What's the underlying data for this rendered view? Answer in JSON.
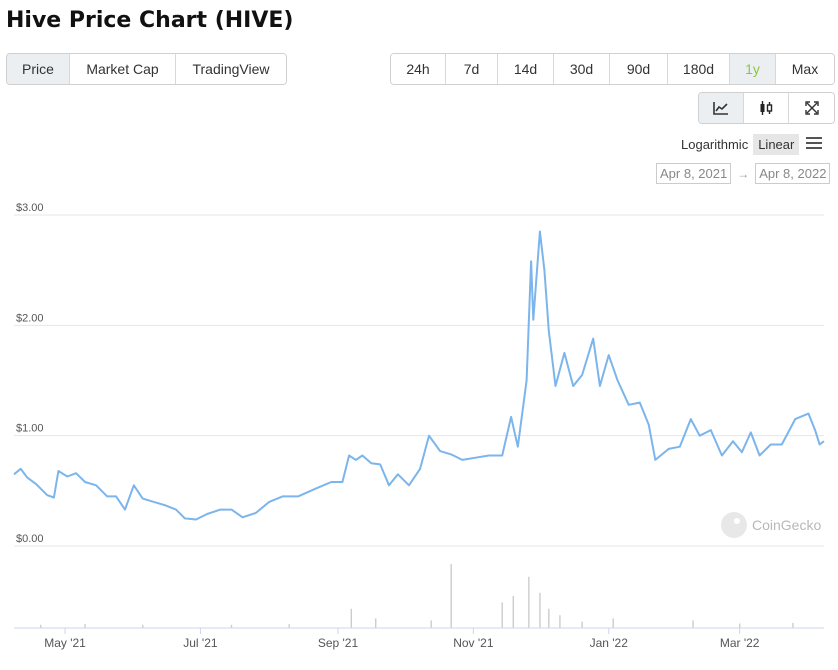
{
  "title": "Hive Price Chart (HIVE)",
  "view_tabs": [
    {
      "label": "Price",
      "active": true
    },
    {
      "label": "Market Cap",
      "active": false
    },
    {
      "label": "TradingView",
      "active": false
    }
  ],
  "range_tabs": [
    {
      "label": "24h",
      "active": false
    },
    {
      "label": "7d",
      "active": false
    },
    {
      "label": "14d",
      "active": false
    },
    {
      "label": "30d",
      "active": false
    },
    {
      "label": "90d",
      "active": false
    },
    {
      "label": "180d",
      "active": false
    },
    {
      "label": "1y",
      "active": true
    },
    {
      "label": "Max",
      "active": false
    }
  ],
  "chart_tools": [
    "line-chart-icon",
    "candlestick-icon",
    "fullscreen-icon"
  ],
  "scale": {
    "log_label": "Logarithmic",
    "linear_label": "Linear",
    "selected": "Linear"
  },
  "date_range": {
    "from": "Apr 8, 2021",
    "arrow": "→",
    "to": "Apr 8, 2022"
  },
  "watermark": "CoinGecko",
  "colors": {
    "line": "#7cb5ec",
    "accent": "#8dc63f",
    "grid": "#e6e6e6",
    "volume": "#cccccc"
  },
  "chart_data": {
    "type": "line",
    "title": "",
    "xlabel": "",
    "ylabel": "",
    "ylim": [
      0,
      3
    ],
    "xlim": [
      "2021-04-08",
      "2022-04-08"
    ],
    "grid": true,
    "y_ticks": [
      {
        "value": 0,
        "label": "$0.00"
      },
      {
        "value": 1,
        "label": "$1.00"
      },
      {
        "value": 2,
        "label": "$2.00"
      },
      {
        "value": 3,
        "label": "$3.00"
      }
    ],
    "x_ticks": [
      {
        "date": "2021-05-01",
        "label": "May '21"
      },
      {
        "date": "2021-07-01",
        "label": "Jul '21"
      },
      {
        "date": "2021-09-01",
        "label": "Sep '21"
      },
      {
        "date": "2021-11-01",
        "label": "Nov '21"
      },
      {
        "date": "2022-01-01",
        "label": "Jan '22"
      },
      {
        "date": "2022-03-01",
        "label": "Mar '22"
      }
    ],
    "series": [
      {
        "values": [
          {
            "x": "2021-04-08",
            "y": 0.65
          },
          {
            "x": "2021-04-11",
            "y": 0.7
          },
          {
            "x": "2021-04-14",
            "y": 0.62
          },
          {
            "x": "2021-04-18",
            "y": 0.56
          },
          {
            "x": "2021-04-23",
            "y": 0.46
          },
          {
            "x": "2021-04-26",
            "y": 0.44
          },
          {
            "x": "2021-04-28",
            "y": 0.68
          },
          {
            "x": "2021-05-02",
            "y": 0.63
          },
          {
            "x": "2021-05-06",
            "y": 0.66
          },
          {
            "x": "2021-05-10",
            "y": 0.58
          },
          {
            "x": "2021-05-15",
            "y": 0.55
          },
          {
            "x": "2021-05-20",
            "y": 0.45
          },
          {
            "x": "2021-05-24",
            "y": 0.45
          },
          {
            "x": "2021-05-28",
            "y": 0.33
          },
          {
            "x": "2021-06-01",
            "y": 0.55
          },
          {
            "x": "2021-06-05",
            "y": 0.43
          },
          {
            "x": "2021-06-10",
            "y": 0.4
          },
          {
            "x": "2021-06-15",
            "y": 0.37
          },
          {
            "x": "2021-06-20",
            "y": 0.33
          },
          {
            "x": "2021-06-24",
            "y": 0.25
          },
          {
            "x": "2021-06-29",
            "y": 0.24
          },
          {
            "x": "2021-07-04",
            "y": 0.29
          },
          {
            "x": "2021-07-10",
            "y": 0.33
          },
          {
            "x": "2021-07-15",
            "y": 0.33
          },
          {
            "x": "2021-07-20",
            "y": 0.26
          },
          {
            "x": "2021-07-26",
            "y": 0.3
          },
          {
            "x": "2021-08-01",
            "y": 0.4
          },
          {
            "x": "2021-08-07",
            "y": 0.45
          },
          {
            "x": "2021-08-14",
            "y": 0.45
          },
          {
            "x": "2021-08-22",
            "y": 0.52
          },
          {
            "x": "2021-08-29",
            "y": 0.58
          },
          {
            "x": "2021-09-03",
            "y": 0.58
          },
          {
            "x": "2021-09-06",
            "y": 0.82
          },
          {
            "x": "2021-09-09",
            "y": 0.78
          },
          {
            "x": "2021-09-12",
            "y": 0.82
          },
          {
            "x": "2021-09-16",
            "y": 0.75
          },
          {
            "x": "2021-09-20",
            "y": 0.74
          },
          {
            "x": "2021-09-24",
            "y": 0.55
          },
          {
            "x": "2021-09-28",
            "y": 0.65
          },
          {
            "x": "2021-10-03",
            "y": 0.55
          },
          {
            "x": "2021-10-08",
            "y": 0.7
          },
          {
            "x": "2021-10-12",
            "y": 1.0
          },
          {
            "x": "2021-10-17",
            "y": 0.86
          },
          {
            "x": "2021-10-22",
            "y": 0.83
          },
          {
            "x": "2021-10-27",
            "y": 0.78
          },
          {
            "x": "2021-11-02",
            "y": 0.8
          },
          {
            "x": "2021-11-08",
            "y": 0.82
          },
          {
            "x": "2021-11-14",
            "y": 0.82
          },
          {
            "x": "2021-11-18",
            "y": 1.17
          },
          {
            "x": "2021-11-21",
            "y": 0.9
          },
          {
            "x": "2021-11-25",
            "y": 1.5
          },
          {
            "x": "2021-11-27",
            "y": 2.58
          },
          {
            "x": "2021-11-28",
            "y": 2.05
          },
          {
            "x": "2021-12-01",
            "y": 2.85
          },
          {
            "x": "2021-12-03",
            "y": 2.5
          },
          {
            "x": "2021-12-05",
            "y": 1.95
          },
          {
            "x": "2021-12-08",
            "y": 1.45
          },
          {
            "x": "2021-12-12",
            "y": 1.75
          },
          {
            "x": "2021-12-16",
            "y": 1.45
          },
          {
            "x": "2021-12-20",
            "y": 1.55
          },
          {
            "x": "2021-12-25",
            "y": 1.88
          },
          {
            "x": "2021-12-28",
            "y": 1.45
          },
          {
            "x": "2022-01-01",
            "y": 1.73
          },
          {
            "x": "2022-01-05",
            "y": 1.5
          },
          {
            "x": "2022-01-10",
            "y": 1.28
          },
          {
            "x": "2022-01-15",
            "y": 1.3
          },
          {
            "x": "2022-01-19",
            "y": 1.1
          },
          {
            "x": "2022-01-22",
            "y": 0.78
          },
          {
            "x": "2022-01-28",
            "y": 0.88
          },
          {
            "x": "2022-02-02",
            "y": 0.9
          },
          {
            "x": "2022-02-07",
            "y": 1.15
          },
          {
            "x": "2022-02-11",
            "y": 1.0
          },
          {
            "x": "2022-02-16",
            "y": 1.05
          },
          {
            "x": "2022-02-21",
            "y": 0.82
          },
          {
            "x": "2022-02-26",
            "y": 0.95
          },
          {
            "x": "2022-03-02",
            "y": 0.85
          },
          {
            "x": "2022-03-06",
            "y": 1.03
          },
          {
            "x": "2022-03-10",
            "y": 0.82
          },
          {
            "x": "2022-03-15",
            "y": 0.92
          },
          {
            "x": "2022-03-20",
            "y": 0.92
          },
          {
            "x": "2022-03-26",
            "y": 1.15
          },
          {
            "x": "2022-04-01",
            "y": 1.2
          },
          {
            "x": "2022-04-04",
            "y": 1.05
          },
          {
            "x": "2022-04-06",
            "y": 0.92
          },
          {
            "x": "2022-04-08",
            "y": 0.95
          }
        ]
      }
    ],
    "volume": {
      "ylim": [
        0,
        1
      ],
      "values": [
        {
          "x": "2021-10-22",
          "y": 1.0
        },
        {
          "x": "2021-11-26",
          "y": 0.8
        },
        {
          "x": "2021-11-14",
          "y": 0.4
        },
        {
          "x": "2021-12-01",
          "y": 0.55
        },
        {
          "x": "2021-09-07",
          "y": 0.3
        },
        {
          "x": "2021-11-19",
          "y": 0.5
        },
        {
          "x": "2021-12-05",
          "y": 0.3
        },
        {
          "x": "2021-12-10",
          "y": 0.2
        },
        {
          "x": "2021-09-18",
          "y": 0.15
        },
        {
          "x": "2021-10-13",
          "y": 0.12
        },
        {
          "x": "2022-01-03",
          "y": 0.15
        },
        {
          "x": "2022-02-08",
          "y": 0.12
        },
        {
          "x": "2021-05-10",
          "y": 0.06
        },
        {
          "x": "2021-06-05",
          "y": 0.05
        },
        {
          "x": "2021-07-15",
          "y": 0.05
        },
        {
          "x": "2021-08-10",
          "y": 0.06
        },
        {
          "x": "2022-03-01",
          "y": 0.07
        },
        {
          "x": "2022-03-25",
          "y": 0.08
        },
        {
          "x": "2021-04-20",
          "y": 0.05
        },
        {
          "x": "2021-12-20",
          "y": 0.1
        }
      ]
    }
  }
}
